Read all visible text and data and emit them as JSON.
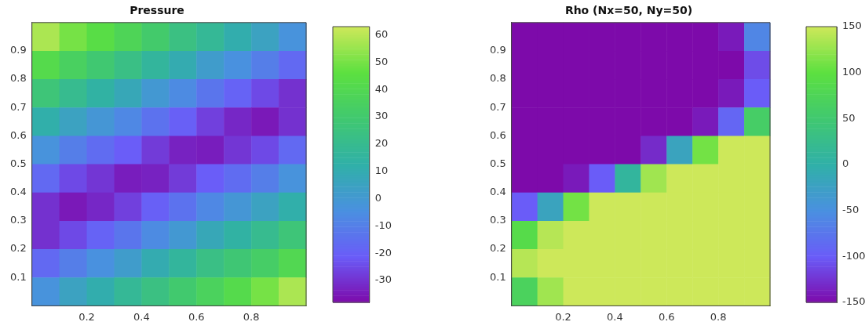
{
  "chart_data": [
    {
      "type": "heatmap",
      "title": "Pressure",
      "xlim": [
        0,
        1
      ],
      "xticks": [
        0.2,
        0.4,
        0.6,
        0.8
      ],
      "ylim": [
        0,
        1
      ],
      "yticks": [
        0.1,
        0.2,
        0.3,
        0.4,
        0.5,
        0.6,
        0.7,
        0.8,
        0.9
      ],
      "clim": [
        -38,
        63
      ],
      "cticks": [
        -30,
        -20,
        -10,
        0,
        10,
        20,
        30,
        40,
        50,
        60
      ],
      "colors": [
        "#7d0aaa",
        "#6a5cf8",
        "#4a90e0",
        "#30b0a8",
        "#40c870",
        "#5ce040",
        "#cde85a"
      ],
      "cells": [
        [
          58,
          50,
          44,
          38,
          31,
          24,
          18,
          11,
          5,
          -3
        ],
        [
          42,
          35,
          29,
          23,
          16,
          10,
          2,
          -4,
          -10,
          -17
        ],
        [
          27,
          20,
          14,
          8,
          0,
          -6,
          -13,
          -19,
          -25,
          -30
        ],
        [
          12,
          5,
          -1,
          -7,
          -14,
          -20,
          -27,
          -32,
          -35,
          -30
        ],
        [
          -3,
          -10,
          -16,
          -21,
          -28,
          -33,
          -34,
          -29,
          -25,
          -17
        ],
        [
          -17,
          -25,
          -29,
          -34,
          -33,
          -28,
          -21,
          -16,
          -10,
          -3
        ],
        [
          -30,
          -35,
          -32,
          -27,
          -20,
          -14,
          -7,
          -1,
          5,
          12
        ],
        [
          -30,
          -25,
          -19,
          -13,
          -6,
          0,
          8,
          14,
          20,
          27
        ],
        [
          -17,
          -10,
          -4,
          2,
          10,
          16,
          23,
          28,
          33,
          40
        ],
        [
          -3,
          5,
          11,
          18,
          24,
          30,
          36,
          42,
          50,
          58
        ]
      ]
    },
    {
      "type": "heatmap",
      "title": "Rho (Nx=50, Ny=50)",
      "xlim": [
        0,
        1
      ],
      "xticks": [
        0.2,
        0.4,
        0.6,
        0.8
      ],
      "ylim": [
        0,
        1
      ],
      "yticks": [
        0.1,
        0.2,
        0.3,
        0.4,
        0.5,
        0.6,
        0.7,
        0.8,
        0.9
      ],
      "clim": [
        -150,
        150
      ],
      "cticks": [
        -150,
        -100,
        -50,
        0,
        50,
        100,
        150
      ],
      "colors": [
        "#7d0aaa",
        "#6a5cf8",
        "#4a90e0",
        "#30b0a8",
        "#40c870",
        "#5ce040",
        "#cde85a"
      ],
      "cells": [
        [
          -150,
          -150,
          -150,
          -150,
          -150,
          -150,
          -150,
          -150,
          -140,
          -60
        ],
        [
          -150,
          -150,
          -150,
          -150,
          -150,
          -150,
          -150,
          -150,
          -150,
          -110
        ],
        [
          -150,
          -150,
          -150,
          -150,
          -150,
          -150,
          -150,
          -150,
          -140,
          -100
        ],
        [
          -150,
          -150,
          -150,
          -150,
          -150,
          -150,
          -150,
          -140,
          -90,
          60
        ],
        [
          -150,
          -150,
          -150,
          -150,
          -150,
          -130,
          -20,
          110,
          150,
          150
        ],
        [
          -150,
          -150,
          -140,
          -100,
          10,
          130,
          150,
          150,
          150,
          150
        ],
        [
          -100,
          -20,
          110,
          150,
          150,
          150,
          150,
          150,
          150,
          150
        ],
        [
          90,
          140,
          150,
          150,
          150,
          150,
          150,
          150,
          150,
          150
        ],
        [
          140,
          150,
          150,
          150,
          150,
          150,
          150,
          150,
          150,
          150
        ],
        [
          70,
          130,
          150,
          150,
          150,
          150,
          150,
          150,
          150,
          150
        ]
      ]
    }
  ]
}
